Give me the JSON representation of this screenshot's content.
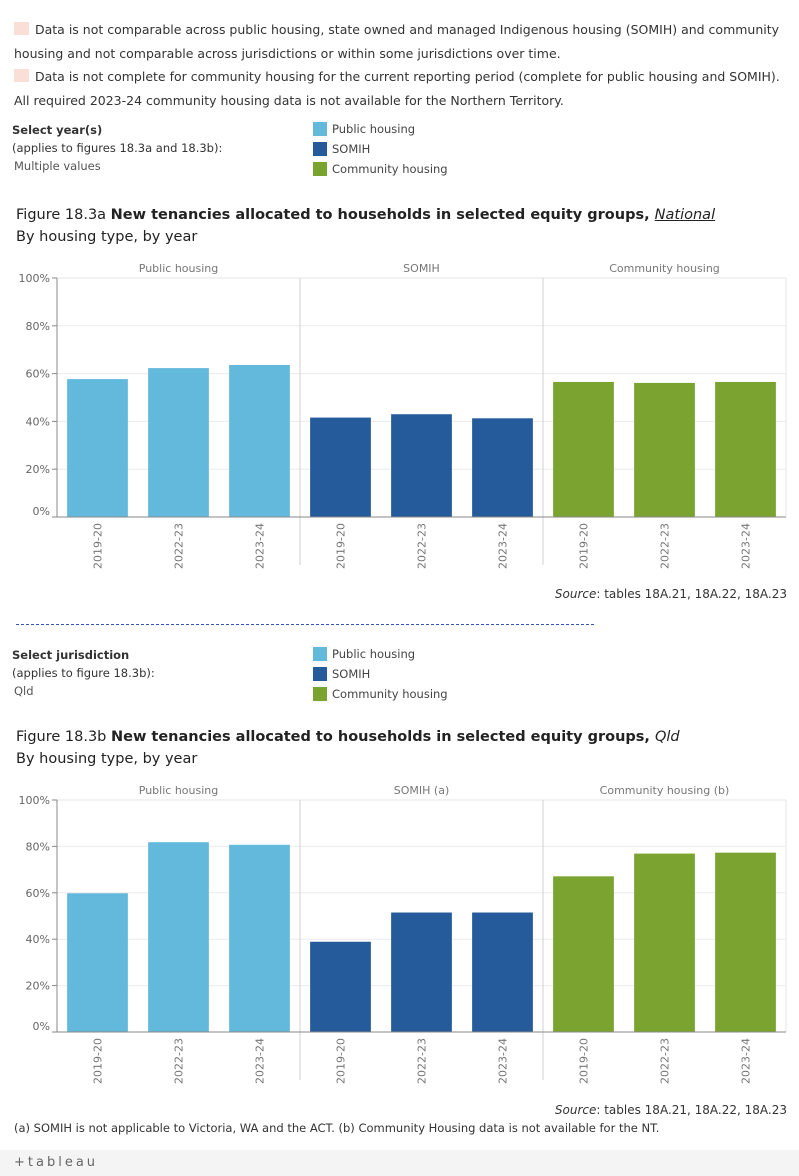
{
  "notes": [
    "Data is not comparable across public housing, state owned and managed Indigenous housing (SOMIH) and community housing and not comparable across jurisdictions or within some jurisdictions over time.",
    "Data is not complete for community housing for the current reporting period (complete for public housing and SOMIH). All required 2023-24 community housing data is not available for the Northern Territory."
  ],
  "filter1": {
    "label": "Select year(s)",
    "sublabel": "(applies to figures 18.3a and 18.3b):",
    "value": "Multiple values"
  },
  "filter2": {
    "label": "Select jurisdiction",
    "sublabel": "(applies to figure 18.3b):",
    "value": "Qld"
  },
  "legend": [
    {
      "label": "Public housing",
      "color": "#63b9dc"
    },
    {
      "label": "SOMIH",
      "color": "#255a9b"
    },
    {
      "label": "Community housing",
      "color": "#7aa32f"
    }
  ],
  "fig_a": {
    "prefix": "Figure 18.3a ",
    "title": "New tenancies allocated to households in selected equity groups, ",
    "region": "National",
    "subtitle": "By housing type, by year"
  },
  "fig_b": {
    "prefix": "Figure 18.3b ",
    "title": "New tenancies allocated to households in selected equity groups, ",
    "region": "Qld",
    "subtitle": "By housing type, by year"
  },
  "source": {
    "label": "Source",
    "text": ": tables 18A.21, 18A.22, 18A.23"
  },
  "footnote": "(a) SOMIH is not applicable to Victoria, WA and the ACT. (b) Community Housing data is not available for the NT.",
  "footer": {
    "logo": "+tableau"
  },
  "chart_data": [
    {
      "type": "bar",
      "title": "New tenancies allocated to households in selected equity groups, National",
      "ylim": [
        0,
        100
      ],
      "yticks": [
        "0%",
        "20%",
        "40%",
        "60%",
        "80%",
        "100%"
      ],
      "panels": [
        {
          "name": "Public housing",
          "color": "#63b9dc",
          "categories": [
            "2019-20",
            "2022-23",
            "2023-24"
          ],
          "values": [
            57.7,
            62.3,
            63.6
          ]
        },
        {
          "name": "SOMIH",
          "color": "#255a9b",
          "categories": [
            "2019-20",
            "2022-23",
            "2023-24"
          ],
          "values": [
            41.6,
            43.0,
            41.3
          ]
        },
        {
          "name": "Community housing",
          "color": "#7aa32f",
          "categories": [
            "2019-20",
            "2022-23",
            "2023-24"
          ],
          "values": [
            56.5,
            56.1,
            56.5
          ]
        }
      ]
    },
    {
      "type": "bar",
      "title": "New tenancies allocated to households in selected equity groups, Qld",
      "ylim": [
        0,
        100
      ],
      "yticks": [
        "0%",
        "20%",
        "40%",
        "60%",
        "80%",
        "100%"
      ],
      "panels": [
        {
          "name": "Public housing",
          "color": "#63b9dc",
          "categories": [
            "2019-20",
            "2022-23",
            "2023-24"
          ],
          "values": [
            59.8,
            81.8,
            80.7
          ]
        },
        {
          "name": "SOMIH (a)",
          "color": "#255a9b",
          "categories": [
            "2019-20",
            "2022-23",
            "2023-24"
          ],
          "values": [
            38.9,
            51.5,
            51.5
          ]
        },
        {
          "name": "Community housing (b)",
          "color": "#7aa32f",
          "categories": [
            "2019-20",
            "2022-23",
            "2023-24"
          ],
          "values": [
            67.1,
            76.9,
            77.3
          ]
        }
      ]
    }
  ]
}
